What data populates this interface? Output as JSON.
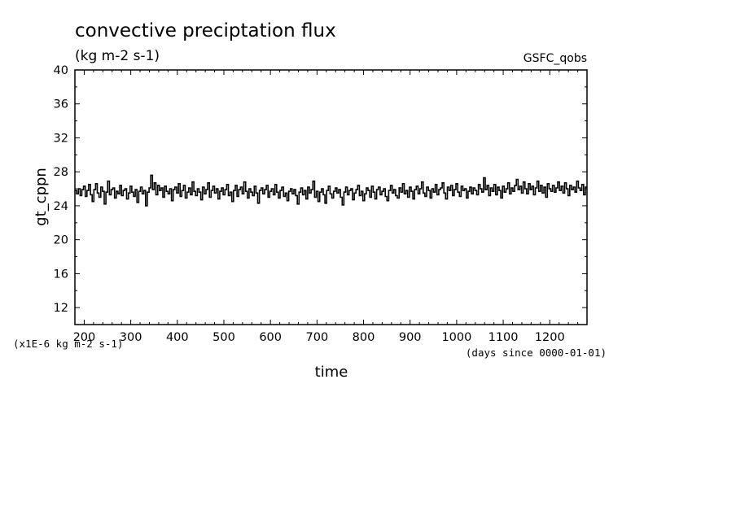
{
  "chart_data": {
    "type": "line",
    "title": "convective preciptation flux",
    "units": "(kg m-2 s-1)",
    "source_label": "GSFC_qobs",
    "xlabel": "time",
    "x_units_note": "(days since 0000-01-01)",
    "ylabel": "gt_cppn",
    "y_scale_note": "(x1E-6 kg m-2 s-1)",
    "xlim": [
      180,
      1280
    ],
    "ylim": [
      10,
      40
    ],
    "x_ticks": [
      200,
      300,
      400,
      500,
      600,
      700,
      800,
      900,
      1000,
      1100,
      1200
    ],
    "y_ticks": [
      12,
      16,
      20,
      24,
      28,
      32,
      36,
      40
    ],
    "x_tick_labels": [
      "200",
      "300",
      "400",
      "500",
      "600",
      "700",
      "800",
      "900",
      "1000",
      "1100",
      "1200"
    ],
    "y_tick_labels": [
      "12",
      "16",
      "20",
      "24",
      "28",
      "32",
      "36",
      "40"
    ],
    "grid": false,
    "series": [
      {
        "x_range": [
          180,
          1280
        ],
        "values": [
          25.8,
          25.4,
          26.0,
          25.2,
          25.9,
          26.3,
          25.1,
          25.8,
          26.5,
          25.3,
          24.5,
          25.9,
          26.6,
          25.5,
          25.0,
          26.2,
          25.7,
          24.2,
          25.6,
          26.9,
          25.3,
          25.9,
          26.1,
          24.9,
          25.7,
          25.4,
          26.4,
          25.2,
          25.8,
          26.0,
          24.8,
          25.5,
          26.3,
          25.6,
          25.1,
          25.9,
          24.4,
          25.7,
          26.2,
          25.4,
          25.8,
          24.0,
          25.6,
          26.1,
          27.6,
          25.9,
          26.7,
          25.3,
          26.4,
          25.8,
          26.1,
          25.0,
          26.3,
          25.7,
          25.4,
          26.0,
          24.6,
          25.9,
          26.2,
          25.5,
          26.6,
          25.1,
          25.8,
          26.4,
          24.9,
          25.6,
          26.1,
          25.3,
          26.8,
          25.7,
          25.2,
          26.0,
          25.6,
          24.7,
          26.2,
          25.4,
          25.9,
          26.7,
          25.0,
          25.8,
          26.3,
          25.5,
          26.0,
          24.8,
          25.7,
          26.1,
          25.3,
          25.9,
          26.5,
          25.2,
          25.6,
          24.5,
          25.8,
          26.4,
          25.1,
          25.9,
          26.2,
          25.4,
          26.8,
          25.7,
          24.9,
          26.0,
          25.6,
          25.2,
          26.3,
          25.5,
          24.3,
          25.8,
          26.1,
          25.4,
          25.9,
          26.4,
          25.0,
          25.7,
          26.0,
          25.3,
          26.5,
          25.6,
          24.9,
          25.8,
          26.2,
          25.1,
          25.5,
          24.6,
          25.7,
          26.0,
          25.4,
          25.9,
          25.2,
          24.2,
          25.6,
          26.1,
          25.3,
          25.8,
          24.8,
          26.2,
          25.5,
          25.9,
          26.9,
          25.0,
          25.7,
          24.5,
          25.6,
          26.0,
          25.3,
          24.3,
          25.8,
          26.3,
          25.4,
          24.9,
          25.7,
          26.1,
          25.5,
          25.9,
          25.0,
          24.1,
          25.6,
          26.2,
          25.3,
          25.8,
          26.0,
          24.7,
          25.5,
          25.9,
          26.4,
          25.2,
          25.7,
          24.6,
          25.4,
          26.1,
          25.8,
          25.0,
          26.3,
          25.6,
          24.8,
          25.9,
          26.2,
          25.3,
          25.7,
          26.0,
          25.1,
          24.6,
          25.8,
          26.4,
          25.5,
          25.9,
          25.2,
          24.9,
          26.1,
          25.6,
          26.6,
          25.4,
          25.8,
          25.0,
          26.2,
          25.7,
          24.8,
          25.9,
          26.3,
          25.4,
          26.0,
          26.8,
          25.5,
          25.1,
          26.2,
          25.8,
          24.9,
          26.0,
          25.6,
          26.5,
          25.3,
          25.9,
          26.1,
          26.7,
          25.5,
          24.8,
          26.2,
          25.8,
          26.4,
          25.2,
          25.9,
          26.6,
          25.6,
          25.1,
          26.3,
          25.8,
          26.0,
          24.9,
          25.7,
          26.2,
          25.4,
          26.1,
          25.8,
          25.3,
          26.5,
          26.0,
          25.6,
          27.3,
          25.9,
          26.4,
          25.2,
          26.1,
          25.7,
          26.5,
          25.3,
          26.2,
          25.8,
          24.9,
          26.3,
          25.6,
          26.0,
          26.7,
          25.4,
          26.1,
          25.7,
          26.4,
          27.1,
          25.9,
          26.3,
          25.5,
          26.8,
          26.0,
          25.4,
          26.6,
          25.9,
          26.3,
          25.3,
          26.1,
          26.9,
          25.7,
          26.4,
          25.5,
          26.2,
          25.0,
          26.6,
          26.0,
          25.7,
          26.4,
          25.6,
          26.1,
          26.8,
          25.8,
          26.3,
          25.5,
          26.7,
          26.0,
          25.2,
          26.4,
          25.9,
          26.2,
          25.6,
          26.9,
          26.1,
          25.8,
          26.5,
          25.3,
          26.2
        ]
      }
    ]
  }
}
